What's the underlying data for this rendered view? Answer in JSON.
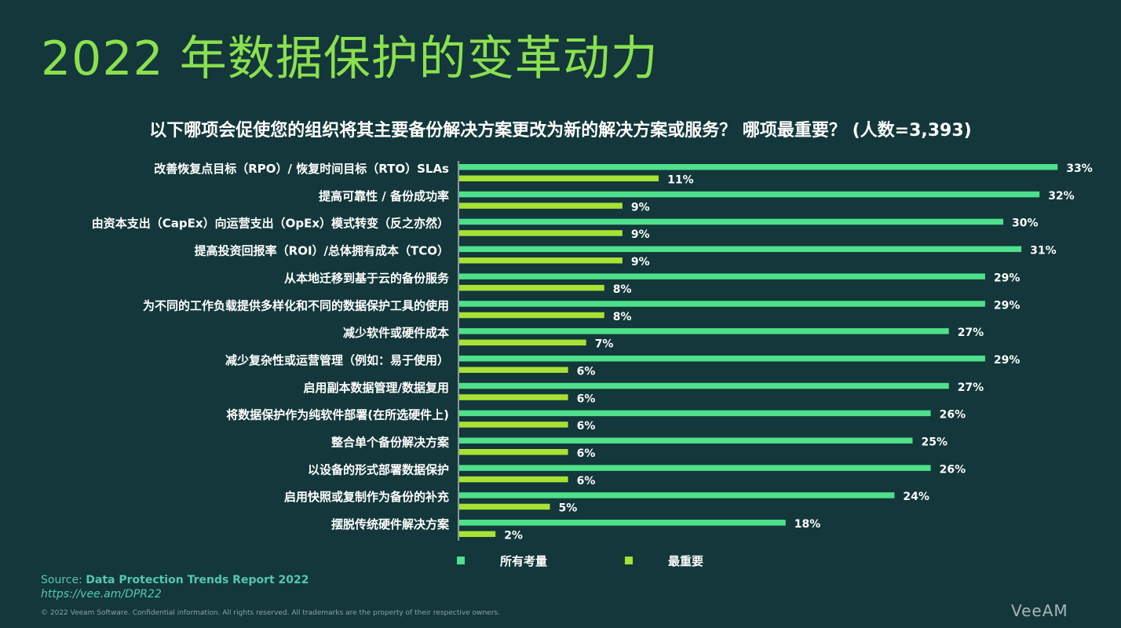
{
  "page": {
    "title": "2022 年数据保护的变革动力",
    "subtitle": "以下哪项会促使您的组织将其主要备份解决方案更改为新的解决方案或服务？ 哪项最重要？ (人数=3,393)"
  },
  "chart_data": {
    "type": "bar",
    "orientation": "horizontal",
    "title": "",
    "value_suffix": "%",
    "categories": [
      "改善恢复点目标（RPO）/ 恢复时间目标（RTO）SLAs",
      "提高可靠性 / 备份成功率",
      "由资本支出（CapEx）向运营支出（OpEx）模式转变（反之亦然）",
      "提高投资回报率（ROI）/总体拥有成本（TCO）",
      "从本地迁移到基于云的备份服务",
      "为不同的工作负载提供多样化和不同的数据保护工具的使用",
      "减少软件或硬件成本",
      "减少复杂性或运营管理（例如：易于使用）",
      "启用副本数据管理/数据复用",
      "将数据保护作为纯软件部署(在所选硬件上)",
      "整合单个备份解决方案",
      "以设备的形式部署数据保护",
      "启用快照或复制作为备份的补充",
      "摆脱传统硬件解决方案"
    ],
    "series": [
      {
        "name": "所有考量",
        "color": "#4ee08a",
        "values": [
          33,
          32,
          30,
          31,
          29,
          29,
          27,
          29,
          27,
          26,
          25,
          26,
          24,
          18
        ]
      },
      {
        "name": "最重要",
        "color": "#a7e234",
        "values": [
          11,
          9,
          9,
          9,
          8,
          8,
          7,
          6,
          6,
          6,
          6,
          6,
          5,
          2
        ]
      }
    ],
    "xlim": [
      0,
      33
    ],
    "grid": false,
    "legend_position": "bottom"
  },
  "footer": {
    "source_label": "Source:",
    "source_title": "Data Protection Trends Report 2022",
    "source_url": "https://vee.am/DPR22",
    "copyright": "© 2022 Veeam Software. Confidential information. All rights reserved. All trademarks are the property of their respective owners.",
    "logo_text": "VeeAM"
  }
}
